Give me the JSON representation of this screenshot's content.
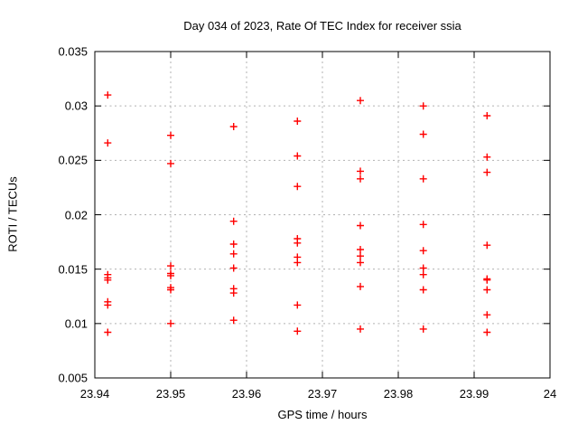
{
  "chart_data": {
    "type": "scatter",
    "title": "Day 034 of 2023, Rate Of TEC Index for receiver ssia",
    "xlabel": "GPS time / hours",
    "ylabel": "ROTI / TECUs",
    "xlim": [
      23.94,
      24
    ],
    "ylim": [
      0.005,
      0.035
    ],
    "grid": true,
    "legend": "none",
    "marker": "plus",
    "colors": {
      "marker": "#ff0000",
      "grid": "#b0b0b0",
      "axis": "#000000",
      "background": "#ffffff"
    },
    "xticks": {
      "values": [
        23.94,
        23.95,
        23.96,
        23.97,
        23.98,
        23.99,
        24
      ],
      "labels": [
        "23.94",
        "23.95",
        "23.96",
        "23.97",
        "23.98",
        "23.99",
        "24"
      ]
    },
    "yticks": {
      "values": [
        0.005,
        0.01,
        0.015,
        0.02,
        0.025,
        0.03,
        0.035
      ],
      "labels": [
        "0.005",
        "0.01",
        "0.015",
        "0.02",
        "0.025",
        "0.03",
        "0.035"
      ]
    },
    "series": [
      {
        "name": "ROTI",
        "points": [
          [
            23.9417,
            0.031
          ],
          [
            23.9417,
            0.0266
          ],
          [
            23.9417,
            0.0145
          ],
          [
            23.9417,
            0.0142
          ],
          [
            23.9417,
            0.014
          ],
          [
            23.9417,
            0.012
          ],
          [
            23.9417,
            0.0117
          ],
          [
            23.9417,
            0.0092
          ],
          [
            23.95,
            0.0273
          ],
          [
            23.95,
            0.0247
          ],
          [
            23.95,
            0.0153
          ],
          [
            23.95,
            0.0146
          ],
          [
            23.95,
            0.0144
          ],
          [
            23.95,
            0.0133
          ],
          [
            23.95,
            0.0131
          ],
          [
            23.95,
            0.01
          ],
          [
            23.9583,
            0.0281
          ],
          [
            23.9583,
            0.0194
          ],
          [
            23.9583,
            0.0173
          ],
          [
            23.9583,
            0.0164
          ],
          [
            23.9583,
            0.0151
          ],
          [
            23.9583,
            0.0132
          ],
          [
            23.9583,
            0.0128
          ],
          [
            23.9583,
            0.0103
          ],
          [
            23.9667,
            0.0286
          ],
          [
            23.9667,
            0.0254
          ],
          [
            23.9667,
            0.0226
          ],
          [
            23.9667,
            0.0178
          ],
          [
            23.9667,
            0.0174
          ],
          [
            23.9667,
            0.0161
          ],
          [
            23.9667,
            0.0156
          ],
          [
            23.9667,
            0.0117
          ],
          [
            23.9667,
            0.0093
          ],
          [
            23.975,
            0.0305
          ],
          [
            23.975,
            0.024
          ],
          [
            23.975,
            0.0233
          ],
          [
            23.975,
            0.019
          ],
          [
            23.975,
            0.0168
          ],
          [
            23.975,
            0.0162
          ],
          [
            23.975,
            0.0156
          ],
          [
            23.975,
            0.0134
          ],
          [
            23.975,
            0.0095
          ],
          [
            23.9833,
            0.03
          ],
          [
            23.9833,
            0.0274
          ],
          [
            23.9833,
            0.0233
          ],
          [
            23.9833,
            0.0191
          ],
          [
            23.9833,
            0.0167
          ],
          [
            23.9833,
            0.0151
          ],
          [
            23.9833,
            0.0145
          ],
          [
            23.9833,
            0.0131
          ],
          [
            23.9833,
            0.0095
          ],
          [
            23.9917,
            0.0291
          ],
          [
            23.9917,
            0.0253
          ],
          [
            23.9917,
            0.0239
          ],
          [
            23.9917,
            0.0172
          ],
          [
            23.9917,
            0.0141
          ],
          [
            23.9917,
            0.014
          ],
          [
            23.9917,
            0.0131
          ],
          [
            23.9917,
            0.0108
          ],
          [
            23.9917,
            0.0092
          ]
        ]
      }
    ]
  }
}
